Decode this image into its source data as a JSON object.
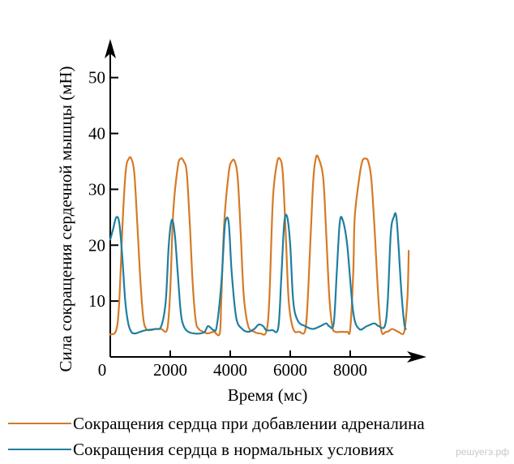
{
  "chart_data": {
    "type": "line",
    "title": "",
    "xlabel": "Время (мс)",
    "ylabel": "Сила сокращения сердечной мышцы (мН)",
    "xlim": [
      0,
      11000
    ],
    "ylim": [
      0,
      53
    ],
    "x_ticks": [
      "0",
      "2000",
      "4000",
      "6000",
      "8000"
    ],
    "x_tick_values": [
      0,
      2000,
      4000,
      6000,
      8000
    ],
    "y_ticks": [
      "10",
      "20",
      "30",
      "40",
      "50"
    ],
    "y_tick_values": [
      10,
      20,
      30,
      40,
      50
    ],
    "grid": false,
    "legend_position": "bottom",
    "series": [
      {
        "name": "Сокращения сердца при добавлении адреналина",
        "color": "#d67a26",
        "x": [
          0,
          200,
          300,
          420,
          520,
          620,
          700,
          800,
          900,
          1000,
          1100,
          1200,
          1350,
          1500,
          1700,
          1900,
          2000,
          2100,
          2250,
          2350,
          2450,
          2550,
          2650,
          2750,
          2850,
          2950,
          3100,
          3250,
          3450,
          3650,
          3700,
          3800,
          3950,
          4050,
          4150,
          4250,
          4350,
          4450,
          4600,
          4800,
          5000,
          5200,
          5300,
          5420,
          5550,
          5650,
          5750,
          5850,
          5950,
          6100,
          6300,
          6500,
          6600,
          6750,
          6850,
          6950,
          7100,
          7200,
          7300,
          7400,
          7500,
          7700,
          7900,
          8000,
          8100,
          8150,
          8300,
          8400,
          8500,
          8600,
          8700,
          8800,
          9000,
          9200,
          9400,
          9600,
          9800,
          9900,
          9930,
          9950
        ],
        "y": [
          4,
          4.8,
          10,
          25,
          33.5,
          35.5,
          35.5,
          33,
          24,
          14,
          7,
          5,
          4.8,
          5,
          5,
          5,
          12,
          26,
          34,
          35.5,
          35,
          33,
          24,
          13,
          6.5,
          5,
          4.5,
          4.2,
          4.5,
          4.2,
          10,
          24,
          33,
          35,
          35,
          32,
          22,
          11,
          5.5,
          4.5,
          4.2,
          4.5,
          10,
          28,
          34.5,
          35.5,
          33,
          22,
          10,
          5,
          4.5,
          4.8,
          12,
          30,
          35.5,
          35.5,
          32,
          22,
          11,
          5.5,
          4.5,
          4.5,
          4.5,
          5,
          15,
          25,
          32,
          35,
          35.5,
          35,
          32,
          24,
          6,
          4.5,
          5,
          4.5,
          4.5,
          10,
          14,
          19
        ]
      },
      {
        "name": "Сокращения сердца в нормальных условиях",
        "color": "#1e7fa0",
        "x": [
          0,
          100,
          200,
          300,
          400,
          500,
          600,
          700,
          800,
          900,
          1000,
          1200,
          1500,
          1700,
          1850,
          1950,
          2050,
          2150,
          2250,
          2350,
          2450,
          2600,
          2800,
          3000,
          3150,
          3250,
          3350,
          3450,
          3550,
          3700,
          3800,
          3850,
          3950,
          4050,
          4200,
          4400,
          4600,
          4800,
          4950,
          5100,
          5200,
          5400,
          5600,
          5700,
          5800,
          5900,
          6000,
          6100,
          6250,
          6500,
          6750,
          7000,
          7200,
          7300,
          7450,
          7550,
          7650,
          7750,
          7900,
          8100,
          8300,
          8550,
          8800,
          8950,
          9150,
          9250,
          9350,
          9450,
          9550,
          9700,
          9800,
          9850
        ],
        "y": [
          21,
          23,
          25,
          24,
          18,
          10,
          6,
          4.5,
          4.2,
          4.3,
          4.5,
          4.8,
          5,
          5.5,
          10,
          20,
          24.5,
          22,
          15,
          8,
          5.5,
          4.5,
          4.2,
          4.2,
          4.5,
          5.5,
          5.2,
          4.8,
          5.5,
          13,
          22,
          24.5,
          24,
          15,
          7,
          5,
          4.5,
          5,
          5.8,
          5.5,
          4.8,
          4.8,
          5.2,
          14,
          24,
          25,
          20,
          10,
          6.5,
          5.5,
          5,
          5.5,
          6,
          5.5,
          6,
          15,
          24,
          24.5,
          20,
          8,
          5,
          5.5,
          6,
          5.5,
          5.5,
          10,
          22,
          25,
          24.5,
          12,
          6,
          5
        ]
      }
    ]
  },
  "watermark": "решуегэ.рф"
}
